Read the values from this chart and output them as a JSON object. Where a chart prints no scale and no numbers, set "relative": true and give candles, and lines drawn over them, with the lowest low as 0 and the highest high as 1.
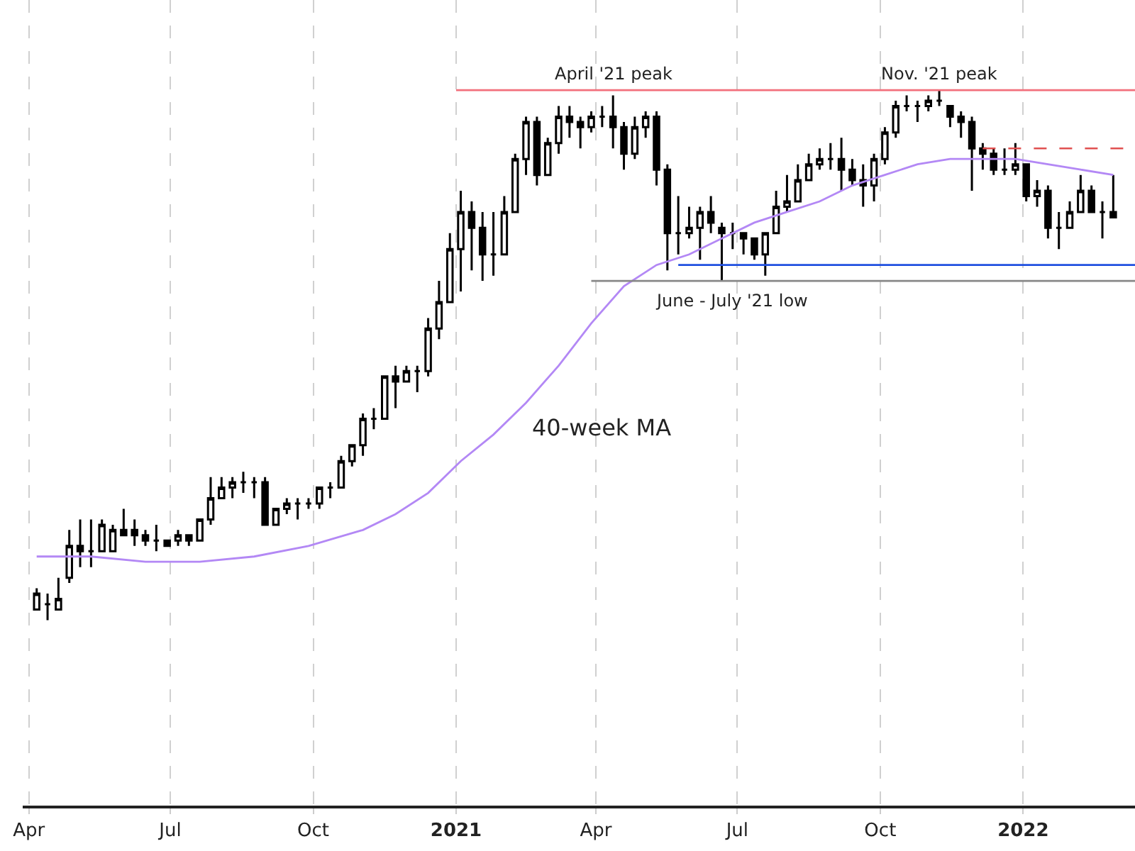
{
  "chart_data": {
    "type": "candlestick",
    "relative": true,
    "grid": "x",
    "color": "#000000",
    "x": [
      "2020-04-06",
      "2020-04-13",
      "2020-04-20",
      "2020-04-27",
      "2020-05-04",
      "2020-05-11",
      "2020-05-18",
      "2020-05-25",
      "2020-06-01",
      "2020-06-08",
      "2020-06-15",
      "2020-06-22",
      "2020-06-29",
      "2020-07-06",
      "2020-07-13",
      "2020-07-20",
      "2020-07-27",
      "2020-08-03",
      "2020-08-10",
      "2020-08-17",
      "2020-08-24",
      "2020-08-31",
      "2020-09-07",
      "2020-09-14",
      "2020-09-21",
      "2020-09-28",
      "2020-10-05",
      "2020-10-12",
      "2020-10-19",
      "2020-10-26",
      "2020-11-02",
      "2020-11-09",
      "2020-11-16",
      "2020-11-23",
      "2020-11-30",
      "2020-12-07",
      "2020-12-14",
      "2020-12-21",
      "2020-12-28",
      "2021-01-04",
      "2021-01-11",
      "2021-01-18",
      "2021-01-25",
      "2021-02-01",
      "2021-02-08",
      "2021-02-15",
      "2021-02-22",
      "2021-03-01",
      "2021-03-08",
      "2021-03-15",
      "2021-03-22",
      "2021-03-29",
      "2021-04-05",
      "2021-04-12",
      "2021-04-19",
      "2021-04-26",
      "2021-05-03",
      "2021-05-10",
      "2021-05-17",
      "2021-05-24",
      "2021-05-31",
      "2021-06-07",
      "2021-06-14",
      "2021-06-21",
      "2021-06-28",
      "2021-07-05",
      "2021-07-12",
      "2021-07-19",
      "2021-07-26",
      "2021-08-02",
      "2021-08-09",
      "2021-08-16",
      "2021-08-23",
      "2021-08-30",
      "2021-09-06",
      "2021-09-13",
      "2021-09-20",
      "2021-09-27",
      "2021-10-04",
      "2021-10-11",
      "2021-10-18",
      "2021-10-25",
      "2021-11-01",
      "2021-11-08",
      "2021-11-15",
      "2021-11-22",
      "2021-11-29",
      "2021-12-06",
      "2021-12-13",
      "2021-12-20",
      "2021-12-27",
      "2022-01-03",
      "2022-01-10",
      "2022-01-17",
      "2022-01-24",
      "2022-01-31",
      "2022-02-07",
      "2022-02-14",
      "2022-02-21",
      "2022-02-28"
    ],
    "ohlc": [
      [
        0.02,
        0.06,
        0.02,
        0.05
      ],
      [
        0.03,
        0.05,
        0,
        0.03
      ],
      [
        0.02,
        0.08,
        0.02,
        0.04
      ],
      [
        0.08,
        0.17,
        0.07,
        0.14
      ],
      [
        0.14,
        0.19,
        0.1,
        0.13
      ],
      [
        0.13,
        0.19,
        0.1,
        0.13
      ],
      [
        0.13,
        0.19,
        0.13,
        0.18
      ],
      [
        0.13,
        0.18,
        0.13,
        0.17
      ],
      [
        0.17,
        0.21,
        0.16,
        0.16
      ],
      [
        0.17,
        0.19,
        0.14,
        0.16
      ],
      [
        0.16,
        0.17,
        0.14,
        0.15
      ],
      [
        0.15,
        0.18,
        0.13,
        0.15
      ],
      [
        0.15,
        0.15,
        0.14,
        0.14
      ],
      [
        0.15,
        0.17,
        0.14,
        0.16
      ],
      [
        0.16,
        0.16,
        0.14,
        0.15
      ],
      [
        0.15,
        0.19,
        0.15,
        0.19
      ],
      [
        0.19,
        0.27,
        0.18,
        0.23
      ],
      [
        0.23,
        0.27,
        0.23,
        0.25
      ],
      [
        0.25,
        0.27,
        0.23,
        0.26
      ],
      [
        0.26,
        0.28,
        0.24,
        0.26
      ],
      [
        0.26,
        0.27,
        0.23,
        0.26
      ],
      [
        0.26,
        0.27,
        0.18,
        0.18
      ],
      [
        0.18,
        0.21,
        0.18,
        0.21
      ],
      [
        0.21,
        0.23,
        0.2,
        0.22
      ],
      [
        0.22,
        0.23,
        0.19,
        0.22
      ],
      [
        0.22,
        0.23,
        0.21,
        0.22
      ],
      [
        0.22,
        0.25,
        0.21,
        0.25
      ],
      [
        0.25,
        0.26,
        0.23,
        0.25
      ],
      [
        0.25,
        0.31,
        0.25,
        0.3
      ],
      [
        0.3,
        0.33,
        0.29,
        0.33
      ],
      [
        0.33,
        0.39,
        0.31,
        0.38
      ],
      [
        0.38,
        0.4,
        0.36,
        0.38
      ],
      [
        0.38,
        0.46,
        0.38,
        0.46
      ],
      [
        0.46,
        0.48,
        0.4,
        0.45
      ],
      [
        0.45,
        0.48,
        0.45,
        0.47
      ],
      [
        0.47,
        0.48,
        0.43,
        0.47
      ],
      [
        0.47,
        0.57,
        0.46,
        0.55
      ],
      [
        0.55,
        0.64,
        0.53,
        0.6
      ],
      [
        0.6,
        0.73,
        0.6,
        0.7
      ],
      [
        0.7,
        0.81,
        0.62,
        0.77
      ],
      [
        0.77,
        0.79,
        0.66,
        0.74
      ],
      [
        0.74,
        0.77,
        0.64,
        0.69
      ],
      [
        0.69,
        0.77,
        0.65,
        0.69
      ],
      [
        0.69,
        0.8,
        0.69,
        0.77
      ],
      [
        0.77,
        0.88,
        0.77,
        0.87
      ],
      [
        0.87,
        0.95,
        0.84,
        0.94
      ],
      [
        0.94,
        0.95,
        0.82,
        0.84
      ],
      [
        0.84,
        0.91,
        0.84,
        0.9
      ],
      [
        0.9,
        0.97,
        0.88,
        0.95
      ],
      [
        0.95,
        0.97,
        0.91,
        0.94
      ],
      [
        0.94,
        0.95,
        0.89,
        0.93
      ],
      [
        0.93,
        0.96,
        0.92,
        0.95
      ],
      [
        0.95,
        0.97,
        0.93,
        0.95
      ],
      [
        0.95,
        0.99,
        0.89,
        0.93
      ],
      [
        0.93,
        0.94,
        0.85,
        0.88
      ],
      [
        0.88,
        0.95,
        0.87,
        0.93
      ],
      [
        0.93,
        0.96,
        0.91,
        0.95
      ],
      [
        0.95,
        0.96,
        0.82,
        0.85
      ],
      [
        0.85,
        0.86,
        0.66,
        0.73
      ],
      [
        0.73,
        0.8,
        0.69,
        0.73
      ],
      [
        0.73,
        0.78,
        0.72,
        0.74
      ],
      [
        0.74,
        0.78,
        0.68,
        0.77
      ],
      [
        0.77,
        0.8,
        0.73,
        0.75
      ],
      [
        0.74,
        0.75,
        0.64,
        0.73
      ],
      [
        0.73,
        0.75,
        0.7,
        0.73
      ],
      [
        0.73,
        0.73,
        0.69,
        0.72
      ],
      [
        0.72,
        0.72,
        0.68,
        0.69
      ],
      [
        0.69,
        0.73,
        0.65,
        0.73
      ],
      [
        0.73,
        0.81,
        0.73,
        0.78
      ],
      [
        0.78,
        0.84,
        0.77,
        0.79
      ],
      [
        0.79,
        0.86,
        0.79,
        0.83
      ],
      [
        0.83,
        0.88,
        0.83,
        0.86
      ],
      [
        0.86,
        0.89,
        0.85,
        0.87
      ],
      [
        0.87,
        0.9,
        0.85,
        0.87
      ],
      [
        0.87,
        0.91,
        0.81,
        0.85
      ],
      [
        0.85,
        0.87,
        0.82,
        0.83
      ],
      [
        0.83,
        0.86,
        0.78,
        0.82
      ],
      [
        0.82,
        0.88,
        0.79,
        0.87
      ],
      [
        0.87,
        0.93,
        0.86,
        0.92
      ],
      [
        0.92,
        0.98,
        0.91,
        0.97
      ],
      [
        0.97,
        0.99,
        0.96,
        0.97
      ],
      [
        0.97,
        0.98,
        0.94,
        0.97
      ],
      [
        0.97,
        0.99,
        0.96,
        0.98
      ],
      [
        0.98,
        1.0,
        0.97,
        0.98
      ],
      [
        0.97,
        0.97,
        0.93,
        0.95
      ],
      [
        0.95,
        0.96,
        0.91,
        0.94
      ],
      [
        0.94,
        0.95,
        0.81,
        0.89
      ],
      [
        0.89,
        0.9,
        0.85,
        0.88
      ],
      [
        0.88,
        0.89,
        0.84,
        0.85
      ],
      [
        0.85,
        0.89,
        0.84,
        0.85
      ],
      [
        0.85,
        0.9,
        0.84,
        0.86
      ],
      [
        0.86,
        0.86,
        0.79,
        0.8
      ],
      [
        0.8,
        0.83,
        0.78,
        0.81
      ],
      [
        0.81,
        0.82,
        0.72,
        0.74
      ],
      [
        0.74,
        0.77,
        0.7,
        0.74
      ],
      [
        0.74,
        0.79,
        0.74,
        0.77
      ],
      [
        0.77,
        0.84,
        0.77,
        0.81
      ],
      [
        0.81,
        0.82,
        0.77,
        0.77
      ],
      [
        0.77,
        0.79,
        0.72,
        0.77
      ],
      [
        0.77,
        0.84,
        0.76,
        0.76
      ]
    ],
    "series": [
      {
        "type": "line",
        "color": "#b388f5",
        "x": [
          "2020-04-06",
          "2020-05-11",
          "2020-06-15",
          "2020-07-20",
          "2020-08-24",
          "2020-09-28",
          "2020-11-02",
          "2020-11-23",
          "2020-12-14",
          "2021-01-04",
          "2021-01-25",
          "2021-02-15",
          "2021-03-08",
          "2021-03-29",
          "2021-04-19",
          "2021-05-10",
          "2021-05-31",
          "2021-06-21",
          "2021-07-12",
          "2021-08-02",
          "2021-08-23",
          "2021-09-13",
          "2021-10-04",
          "2021-10-25",
          "2021-11-15",
          "2021-12-06",
          "2021-12-27",
          "2022-01-17",
          "2022-02-07",
          "2022-02-28"
        ],
        "values": [
          0.12,
          0.12,
          0.11,
          0.11,
          0.12,
          0.14,
          0.17,
          0.2,
          0.24,
          0.3,
          0.35,
          0.41,
          0.48,
          0.56,
          0.63,
          0.67,
          0.69,
          0.72,
          0.75,
          0.77,
          0.79,
          0.82,
          0.84,
          0.86,
          0.87,
          0.87,
          0.87,
          0.86,
          0.85,
          0.84
        ]
      },
      {
        "type": "line",
        "color": "#f2707c",
        "x": [
          "2021-01-01",
          "2022-03-14"
        ],
        "values": [
          1.0,
          1.0
        ]
      },
      {
        "type": "line",
        "color": "#1f4fe0",
        "x": [
          "2021-05-24",
          "2022-03-14"
        ],
        "values": [
          0.67,
          0.67
        ]
      },
      {
        "type": "line",
        "color": "#888888",
        "x": [
          "2021-03-29",
          "2022-03-14"
        ],
        "values": [
          0.64,
          0.64
        ]
      },
      {
        "type": "line",
        "color": "#e05050",
        "line_style": "dashed",
        "x": [
          "2021-12-06",
          "2022-03-14"
        ],
        "values": [
          0.89,
          0.89
        ]
      }
    ],
    "annotations": [
      {
        "text": "April '21 peak",
        "x": "2021-04-12",
        "y": 1.0
      },
      {
        "text": "Nov. '21 peak",
        "x": "2021-11-08",
        "y": 1.0
      },
      {
        "text": "June - July '21 low",
        "x": "2021-06-28",
        "y": 0.64
      },
      "40-week MA"
    ],
    "xlim": [
      "2020-03-28",
      "2022-03-14"
    ],
    "xticks": [
      {
        "value": "2020-04-01",
        "label": "Apr"
      },
      {
        "value": "2020-07-01",
        "label": "Jul"
      },
      {
        "value": "2020-10-01",
        "label": "Oct"
      },
      {
        "value": "2021-01-01",
        "label": "2021"
      },
      {
        "value": "2021-04-01",
        "label": "Apr"
      },
      {
        "value": "2021-07-01",
        "label": "Jul"
      },
      {
        "value": "2021-10-01",
        "label": "Oct"
      },
      {
        "value": "2022-01-01",
        "label": "2022"
      }
    ]
  }
}
